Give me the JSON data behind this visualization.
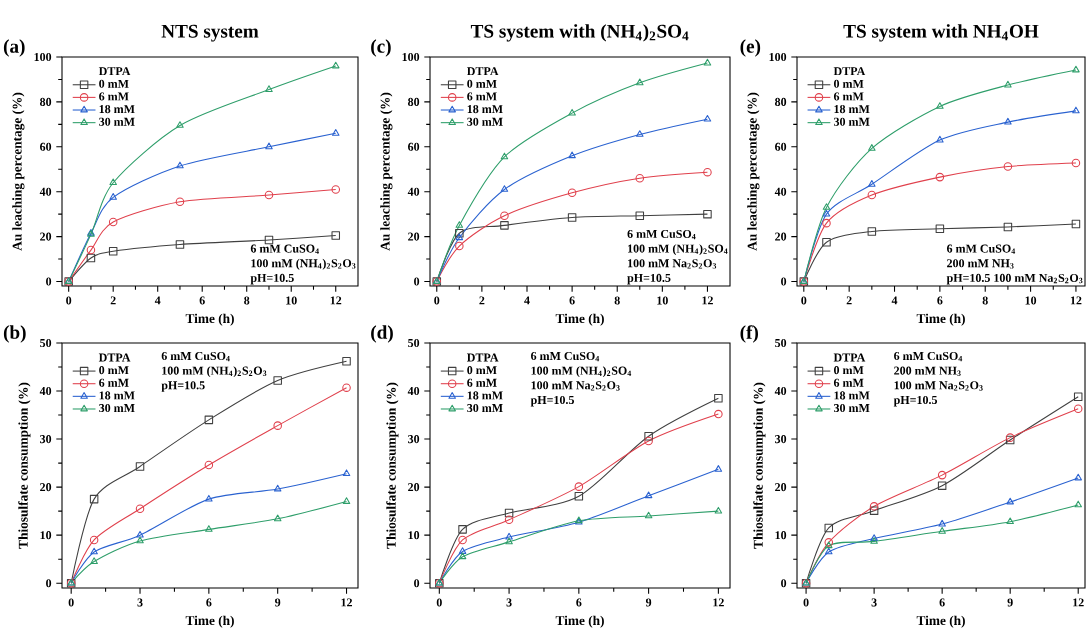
{
  "chart_data": [
    {
      "type": "line",
      "title": "NTS system",
      "xlabel": "Time (h)",
      "ylabel": "Au leaching percentage (%)",
      "legend_title": "DTPA",
      "legend": "top left",
      "annotations": [
        "(a)",
        "6 mM CuSO$_{4}$",
        "100 mM  (NH$_{4}$)$_{2}$S$_{2}$O$_{3}$",
        "pH=10.5"
      ],
      "x": [
        0,
        1,
        2,
        5,
        9,
        12
      ],
      "xlim": [
        -0.3,
        13
      ],
      "ylim": [
        -2,
        100
      ],
      "xticks": [
        0,
        2,
        4,
        6,
        8,
        10,
        12
      ],
      "yticks": [
        0,
        20,
        40,
        60,
        80,
        100
      ],
      "series": [
        {
          "name": "0 mM",
          "color": "#404040",
          "marker": "square",
          "values": [
            0,
            10.5,
            13.5,
            16.5,
            18.5,
            20.5
          ]
        },
        {
          "name": "6 mM",
          "color": "#e0404c",
          "marker": "circle",
          "values": [
            0,
            14,
            26.5,
            35.5,
            38.5,
            41
          ]
        },
        {
          "name": "18 mM",
          "color": "#2a62d0",
          "marker": "triangle",
          "values": [
            0,
            21.5,
            37.5,
            51.5,
            60,
            66
          ]
        },
        {
          "name": "30 mM",
          "color": "#2e9e6a",
          "marker": "triangle",
          "values": [
            0,
            21,
            44,
            69.5,
            85.5,
            96
          ]
        }
      ]
    },
    {
      "type": "line",
      "xlabel": "Time (h)",
      "ylabel": "Thiosulfate consumption (%)",
      "legend_title": "DTPA",
      "legend": "top left",
      "annotations": [
        "(b)",
        "6 mM CuSO$_{4}$",
        "100 mM  (NH$_{4}$)$_{2}$S$_{2}$O$_{3}$",
        "pH=10.5"
      ],
      "x": [
        0,
        1,
        3,
        6,
        9,
        12
      ],
      "xlim": [
        -0.4,
        12.5
      ],
      "ylim": [
        -1,
        50
      ],
      "xticks": [
        0,
        3,
        6,
        9,
        12
      ],
      "yticks": [
        0,
        10,
        20,
        30,
        40,
        50
      ],
      "series": [
        {
          "name": "0 mM",
          "color": "#404040",
          "marker": "square",
          "values": [
            0,
            17.5,
            24.3,
            34,
            42.2,
            46.2
          ]
        },
        {
          "name": "6 mM",
          "color": "#e0404c",
          "marker": "circle",
          "values": [
            0,
            9,
            15.5,
            24.6,
            32.8,
            40.7
          ]
        },
        {
          "name": "18 mM",
          "color": "#2a62d0",
          "marker": "triangle",
          "values": [
            0,
            6.5,
            10,
            17.5,
            19.6,
            22.8
          ]
        },
        {
          "name": "30 mM",
          "color": "#2e9e6a",
          "marker": "triangle",
          "values": [
            0,
            4.5,
            8.8,
            11.2,
            13.4,
            17
          ]
        }
      ]
    },
    {
      "type": "line",
      "title": "TS system with (NH$_{4}$)$_{2}$SO$_{4}$",
      "xlabel": "Time (h)",
      "ylabel": "Au leaching percentage (%)",
      "legend_title": "DTPA",
      "legend": "top left",
      "annotations": [
        "(c)",
        "6 mM CuSO$_{4}$",
        "100 mM  (NH$_{4}$)$_{2}$SO$_{4}$",
        "100 mM Na$_{2}$S$_{2}$O$_{3}$",
        "pH=10.5"
      ],
      "x": [
        0,
        1,
        3,
        6,
        9,
        12
      ],
      "xlim": [
        -0.3,
        13
      ],
      "ylim": [
        -2,
        100
      ],
      "xticks": [
        0,
        2,
        4,
        6,
        8,
        10,
        12
      ],
      "yticks": [
        0,
        20,
        40,
        60,
        80,
        100
      ],
      "series": [
        {
          "name": "0 mM",
          "color": "#404040",
          "marker": "square",
          "values": [
            0,
            21.5,
            25,
            28.5,
            29.3,
            30
          ]
        },
        {
          "name": "6 mM",
          "color": "#e0404c",
          "marker": "circle",
          "values": [
            0,
            15.8,
            29.3,
            39.5,
            46,
            48.7
          ]
        },
        {
          "name": "18 mM",
          "color": "#2a62d0",
          "marker": "triangle",
          "values": [
            0,
            19.5,
            41,
            56,
            65.5,
            72.3
          ]
        },
        {
          "name": "30 mM",
          "color": "#2e9e6a",
          "marker": "triangle",
          "values": [
            0,
            25,
            55.5,
            75,
            88.5,
            97.3
          ]
        }
      ]
    },
    {
      "type": "line",
      "xlabel": "Time (h)",
      "ylabel": "Thiosulfate consumption (%)",
      "legend_title": "DTPA",
      "legend": "top left",
      "annotations": [
        "(d)",
        "6 mM CuSO$_{4}$",
        "100 mM  (NH$_{4}$)$_{2}$SO$_{4}$",
        "100 mM Na$_{2}$S$_{2}$O$_{3}$",
        "pH=10.5"
      ],
      "x": [
        0,
        1,
        3,
        6,
        9,
        12
      ],
      "xlim": [
        -0.4,
        12.5
      ],
      "ylim": [
        -1,
        50
      ],
      "xticks": [
        0,
        3,
        6,
        9,
        12
      ],
      "yticks": [
        0,
        10,
        20,
        30,
        40,
        50
      ],
      "series": [
        {
          "name": "0 mM",
          "color": "#404040",
          "marker": "square",
          "values": [
            0,
            11.2,
            14.6,
            18.1,
            30.6,
            38.5
          ]
        },
        {
          "name": "6 mM",
          "color": "#e0404c",
          "marker": "circle",
          "values": [
            0,
            9,
            13.2,
            20.1,
            29.6,
            35.2
          ]
        },
        {
          "name": "18 mM",
          "color": "#2a62d0",
          "marker": "triangle",
          "values": [
            0,
            6.6,
            9.6,
            12.7,
            18.2,
            23.7
          ]
        },
        {
          "name": "30 mM",
          "color": "#2e9e6a",
          "marker": "triangle",
          "values": [
            0,
            5.5,
            8.6,
            13,
            14,
            15
          ]
        }
      ]
    },
    {
      "type": "line",
      "title": "TS system with NH$_{4}$OH",
      "xlabel": "Time (h)",
      "ylabel": "Au leaching percentage (%)",
      "legend_title": "DTPA",
      "legend": "top left",
      "annotations": [
        "(e)",
        "6 mM CuSO$_{4}$",
        "200 mM  NH$_{3}$",
        "pH=10.5  100 mM Na$_{2}$S$_{2}$O$_{3}$"
      ],
      "x": [
        0,
        1,
        3,
        6,
        9,
        12
      ],
      "xlim": [
        -0.3,
        12.4
      ],
      "ylim": [
        -2,
        100
      ],
      "xticks": [
        0,
        2,
        4,
        6,
        8,
        10,
        12
      ],
      "yticks": [
        0,
        20,
        40,
        60,
        80,
        100
      ],
      "series": [
        {
          "name": "0 mM",
          "color": "#404040",
          "marker": "square",
          "values": [
            0,
            17.5,
            22.3,
            23.5,
            24.3,
            25.6
          ]
        },
        {
          "name": "6 mM",
          "color": "#e0404c",
          "marker": "circle",
          "values": [
            0,
            26,
            38.5,
            46.5,
            51.2,
            52.8
          ]
        },
        {
          "name": "18 mM",
          "color": "#2a62d0",
          "marker": "triangle",
          "values": [
            0,
            30,
            43.3,
            63,
            71,
            76
          ]
        },
        {
          "name": "30 mM",
          "color": "#2e9e6a",
          "marker": "triangle",
          "values": [
            0,
            33,
            59.3,
            78,
            87.5,
            94.2
          ]
        }
      ]
    },
    {
      "type": "line",
      "xlabel": "Time (h)",
      "ylabel": "Thiosulfate consumption (%)",
      "legend_title": "DTPA",
      "legend": "top left",
      "annotations": [
        "(f)",
        "6 mM CuSO$_{4}$",
        "200 mM  NH$_{3}$",
        "100 mM Na$_{2}$S$_{2}$O$_{3}$",
        "pH=10.5"
      ],
      "x": [
        0,
        1,
        3,
        6,
        9,
        12
      ],
      "xlim": [
        -0.4,
        12.3
      ],
      "ylim": [
        -1,
        50
      ],
      "xticks": [
        0,
        3,
        6,
        9,
        12
      ],
      "yticks": [
        0,
        10,
        20,
        30,
        40,
        50
      ],
      "series": [
        {
          "name": "0 mM",
          "color": "#404040",
          "marker": "square",
          "values": [
            0,
            11.5,
            15.1,
            20.3,
            29.8,
            38.8
          ]
        },
        {
          "name": "6 mM",
          "color": "#e0404c",
          "marker": "circle",
          "values": [
            0,
            8.5,
            16,
            22.5,
            30.3,
            36.3
          ]
        },
        {
          "name": "18 mM",
          "color": "#2a62d0",
          "marker": "triangle",
          "values": [
            0,
            6.5,
            9.3,
            12.3,
            16.9,
            21.9
          ]
        },
        {
          "name": "30 mM",
          "color": "#2e9e6a",
          "marker": "triangle",
          "values": [
            0,
            7.8,
            8.7,
            10.8,
            12.8,
            16.3
          ]
        }
      ]
    }
  ]
}
